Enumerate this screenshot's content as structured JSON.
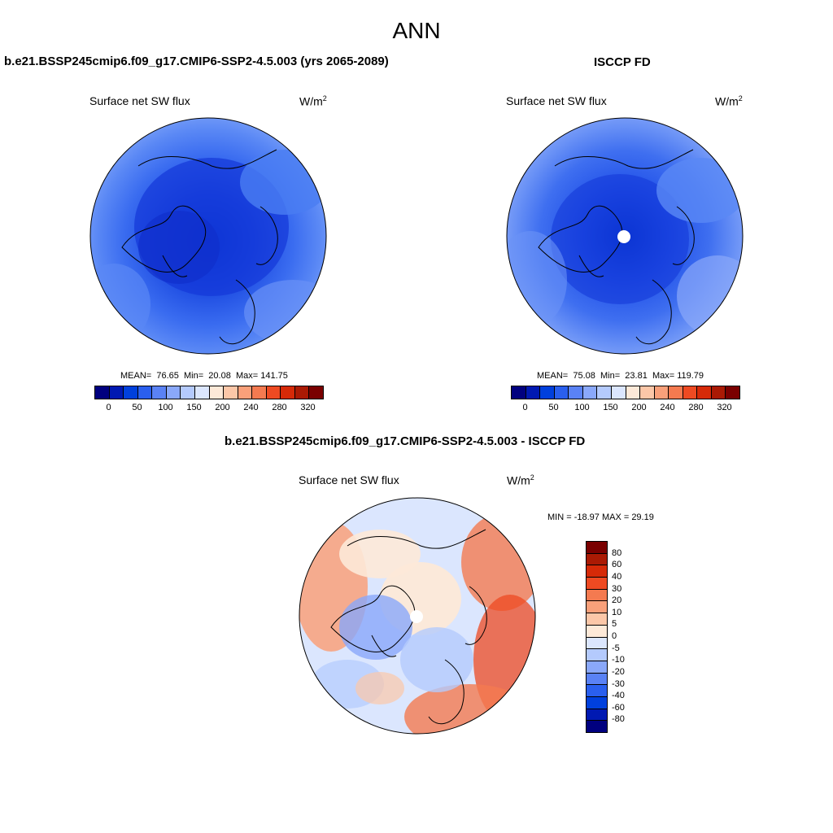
{
  "main_title": "ANN",
  "panels": {
    "model": {
      "title": "b.e21.BSSP245cmip6.f09_g17.CMIP6-SSP2-4.5.003 (yrs 2065-2089)",
      "variable": "Surface net SW flux",
      "units": "W/m",
      "units_sup": "2",
      "stats": {
        "mean_label": "MEAN=",
        "mean": "76.65",
        "min_label": "Min=",
        "min": "20.08",
        "max_label": "Max=",
        "max": "141.75"
      }
    },
    "obs": {
      "title": "ISCCP FD",
      "variable": "Surface net SW flux",
      "units": "W/m",
      "units_sup": "2",
      "stats": {
        "mean_label": "MEAN=",
        "mean": "75.08",
        "min_label": "Min=",
        "min": "23.81",
        "max_label": "Max=",
        "max": "119.79"
      }
    },
    "diff": {
      "title": "b.e21.BSSP245cmip6.f09_g17.CMIP6-SSP2-4.5.003 - ISCCP FD",
      "variable": "Surface net SW flux",
      "units": "W/m",
      "units_sup": "2",
      "minmax": "MIN = -18.97 MAX =  29.19"
    }
  },
  "abs_colorbar": {
    "colors": [
      "#00007f",
      "#0019b2",
      "#0040dd",
      "#2a5fee",
      "#5a82f5",
      "#8aa8fa",
      "#b4cafd",
      "#dbe6fe",
      "#fde9d8",
      "#fcc7a8",
      "#f9a07a",
      "#f47a50",
      "#ee4a22",
      "#d62a08",
      "#aa1a04",
      "#7a0000"
    ],
    "ticks": [
      "0",
      "50",
      "100",
      "150",
      "200",
      "240",
      "280",
      "320"
    ]
  },
  "diff_colorbar": {
    "colors": [
      "#7a0000",
      "#aa1a04",
      "#d62a08",
      "#ee4a22",
      "#f47a50",
      "#f9a07a",
      "#fcc7a8",
      "#fde9d8",
      "#dbe6fe",
      "#b4cafd",
      "#8aa8fa",
      "#5a82f5",
      "#2a5fee",
      "#0040dd",
      "#0019b2",
      "#00007f"
    ],
    "ticks": [
      "80",
      "60",
      "40",
      "30",
      "20",
      "10",
      "5",
      "0",
      "-5",
      "-10",
      "-20",
      "-30",
      "-40",
      "-60",
      "-80"
    ]
  }
}
